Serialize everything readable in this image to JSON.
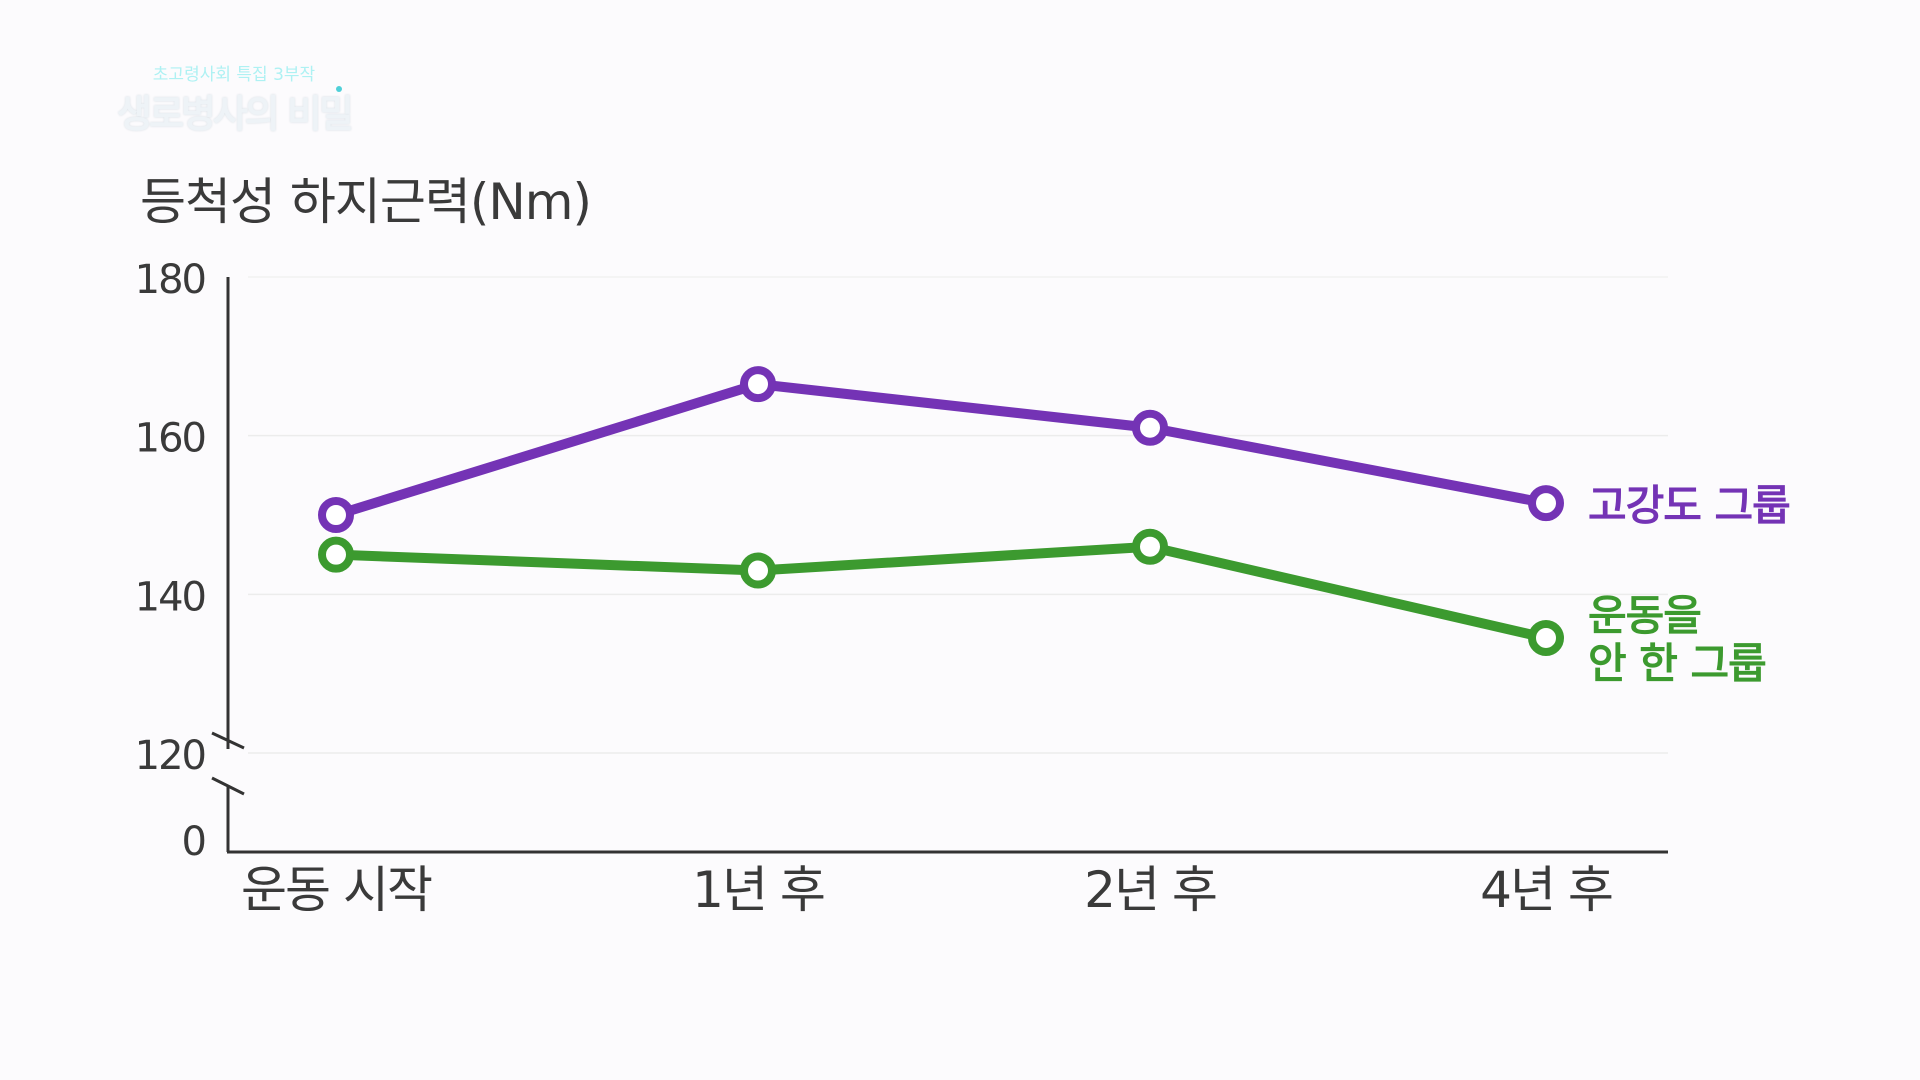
{
  "logo": {
    "subtitle": "초고령사회 특집 3부작",
    "title": "생로병사의 비밀"
  },
  "colors": {
    "high_intensity": "#7433b5",
    "no_exercise": "#3c9a2f",
    "axis": "#333333",
    "grid": "#ececec",
    "text": "#3a3a3a"
  },
  "chart_data": {
    "type": "line",
    "title": "등척성 하지근력(Nm)",
    "categories": [
      "운동 시작",
      "1년 후",
      "2년 후",
      "4년 후"
    ],
    "y_ticks": [
      0,
      120,
      140,
      160,
      180
    ],
    "ylim": [
      120,
      180
    ],
    "axis_break": true,
    "grid": true,
    "series": [
      {
        "name": "고강도 그룹",
        "label_lines": [
          "고강도 그룹"
        ],
        "values": [
          150,
          166.5,
          161,
          151.5
        ],
        "color": "#7433b5"
      },
      {
        "name": "운동을 안 한 그룹",
        "label_lines": [
          "운동을",
          "안 한 그룹"
        ],
        "values": [
          145,
          143,
          146,
          134.5
        ],
        "color": "#3c9a2f"
      }
    ]
  }
}
